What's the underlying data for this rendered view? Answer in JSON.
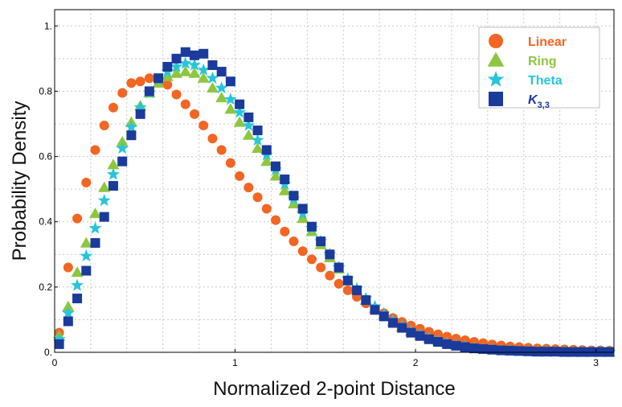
{
  "chart_data": {
    "type": "scatter",
    "xlabel": "Normalized 2-point Distance",
    "ylabel": "Probability Density",
    "xlim": [
      0,
      3.1
    ],
    "ylim": [
      0,
      1.05
    ],
    "x_ticks": [
      0,
      1,
      2,
      3
    ],
    "x_tick_labels": [
      "0",
      "1",
      "2",
      "3"
    ],
    "y_ticks": [
      0,
      0.2,
      0.4,
      0.6,
      0.8,
      1.0
    ],
    "y_tick_labels": [
      "0.",
      "0.2",
      "0.4",
      "0.6",
      "0.8",
      "1."
    ],
    "grid": true,
    "legend_position": "top-right",
    "series": [
      {
        "name": "Linear",
        "marker": "circle",
        "color": "#f26522",
        "x": [
          0.025,
          0.075,
          0.125,
          0.175,
          0.225,
          0.275,
          0.325,
          0.375,
          0.425,
          0.475,
          0.525,
          0.575,
          0.625,
          0.675,
          0.725,
          0.775,
          0.825,
          0.875,
          0.925,
          0.975,
          1.025,
          1.075,
          1.125,
          1.175,
          1.225,
          1.275,
          1.325,
          1.375,
          1.425,
          1.475,
          1.525,
          1.575,
          1.625,
          1.675,
          1.725,
          1.775,
          1.825,
          1.875,
          1.925,
          1.975,
          2.025,
          2.075,
          2.125,
          2.175,
          2.225,
          2.275,
          2.325,
          2.375,
          2.425,
          2.475,
          2.525,
          2.575,
          2.625,
          2.675,
          2.725,
          2.775,
          2.825,
          2.875,
          2.925,
          2.975,
          3.025,
          3.075
        ],
        "y": [
          0.06,
          0.26,
          0.41,
          0.52,
          0.62,
          0.695,
          0.75,
          0.795,
          0.825,
          0.83,
          0.84,
          0.83,
          0.82,
          0.79,
          0.76,
          0.73,
          0.695,
          0.655,
          0.62,
          0.58,
          0.54,
          0.505,
          0.475,
          0.44,
          0.405,
          0.37,
          0.34,
          0.31,
          0.285,
          0.26,
          0.235,
          0.21,
          0.19,
          0.17,
          0.15,
          0.135,
          0.12,
          0.105,
          0.093,
          0.082,
          0.072,
          0.063,
          0.055,
          0.048,
          0.042,
          0.037,
          0.032,
          0.028,
          0.024,
          0.021,
          0.018,
          0.016,
          0.014,
          0.012,
          0.011,
          0.01,
          0.009,
          0.008,
          0.007,
          0.006,
          0.006,
          0.005
        ]
      },
      {
        "name": "Ring",
        "marker": "triangle",
        "color": "#8dc63f",
        "x": [
          0.025,
          0.075,
          0.125,
          0.175,
          0.225,
          0.275,
          0.325,
          0.375,
          0.425,
          0.475,
          0.525,
          0.575,
          0.625,
          0.675,
          0.725,
          0.775,
          0.825,
          0.875,
          0.925,
          0.975,
          1.025,
          1.075,
          1.125,
          1.175,
          1.225,
          1.275,
          1.325,
          1.375,
          1.425,
          1.475,
          1.525,
          1.575,
          1.625,
          1.675,
          1.725,
          1.775,
          1.825,
          1.875,
          1.925,
          1.975,
          2.025,
          2.075,
          2.125,
          2.175,
          2.225,
          2.275,
          2.325,
          2.375,
          2.425,
          2.475,
          2.525,
          2.575,
          2.625,
          2.675,
          2.725,
          2.775,
          2.825,
          2.875,
          2.925,
          2.975,
          3.025,
          3.075
        ],
        "y": [
          0.05,
          0.14,
          0.245,
          0.335,
          0.425,
          0.505,
          0.575,
          0.645,
          0.705,
          0.755,
          0.795,
          0.825,
          0.845,
          0.855,
          0.86,
          0.855,
          0.84,
          0.81,
          0.78,
          0.745,
          0.705,
          0.665,
          0.625,
          0.585,
          0.54,
          0.495,
          0.455,
          0.41,
          0.37,
          0.33,
          0.29,
          0.255,
          0.22,
          0.19,
          0.16,
          0.135,
          0.115,
          0.095,
          0.078,
          0.065,
          0.053,
          0.043,
          0.035,
          0.028,
          0.022,
          0.018,
          0.014,
          0.011,
          0.009,
          0.007,
          0.006,
          0.005,
          0.004,
          0.003,
          0.003,
          0.002,
          0.002,
          0.002,
          0.001,
          0.001,
          0.001,
          0.001
        ]
      },
      {
        "name": "Theta",
        "marker": "star",
        "color": "#26c6da",
        "x": [
          0.025,
          0.075,
          0.125,
          0.175,
          0.225,
          0.275,
          0.325,
          0.375,
          0.425,
          0.475,
          0.525,
          0.575,
          0.625,
          0.675,
          0.725,
          0.775,
          0.825,
          0.875,
          0.925,
          0.975,
          1.025,
          1.075,
          1.125,
          1.175,
          1.225,
          1.275,
          1.325,
          1.375,
          1.425,
          1.475,
          1.525,
          1.575,
          1.625,
          1.675,
          1.725,
          1.775,
          1.825,
          1.875,
          1.925,
          1.975,
          2.025,
          2.075,
          2.125,
          2.175,
          2.225,
          2.275,
          2.325,
          2.375,
          2.425,
          2.475,
          2.525,
          2.575,
          2.625,
          2.675,
          2.725,
          2.775,
          2.825,
          2.875,
          2.925,
          2.975,
          3.025,
          3.075
        ],
        "y": [
          0.04,
          0.12,
          0.205,
          0.295,
          0.38,
          0.465,
          0.545,
          0.625,
          0.69,
          0.75,
          0.795,
          0.835,
          0.86,
          0.875,
          0.885,
          0.88,
          0.865,
          0.84,
          0.81,
          0.775,
          0.735,
          0.695,
          0.65,
          0.605,
          0.56,
          0.515,
          0.47,
          0.425,
          0.38,
          0.34,
          0.3,
          0.26,
          0.225,
          0.195,
          0.165,
          0.14,
          0.118,
          0.098,
          0.081,
          0.066,
          0.054,
          0.044,
          0.035,
          0.028,
          0.022,
          0.017,
          0.013,
          0.01,
          0.008,
          0.006,
          0.005,
          0.004,
          0.003,
          0.002,
          0.002,
          0.002,
          0.001,
          0.001,
          0.001,
          0.001,
          0.001,
          0.001
        ]
      },
      {
        "name": "K3,3",
        "name_main": "K",
        "name_sub": "3,3",
        "marker": "square",
        "color": "#1a3a9c",
        "x": [
          0.025,
          0.075,
          0.125,
          0.175,
          0.225,
          0.275,
          0.325,
          0.375,
          0.425,
          0.475,
          0.525,
          0.575,
          0.625,
          0.675,
          0.725,
          0.775,
          0.825,
          0.875,
          0.925,
          0.975,
          1.025,
          1.075,
          1.125,
          1.175,
          1.225,
          1.275,
          1.325,
          1.375,
          1.425,
          1.475,
          1.525,
          1.575,
          1.625,
          1.675,
          1.725,
          1.775,
          1.825,
          1.875,
          1.925,
          1.975,
          2.025,
          2.075,
          2.125,
          2.175,
          2.225,
          2.275,
          2.325,
          2.375,
          2.425,
          2.475,
          2.525,
          2.575,
          2.625,
          2.675,
          2.725,
          2.775,
          2.825,
          2.875,
          2.925,
          2.975,
          3.025,
          3.075
        ],
        "y": [
          0.025,
          0.095,
          0.165,
          0.25,
          0.335,
          0.415,
          0.51,
          0.585,
          0.665,
          0.73,
          0.8,
          0.84,
          0.875,
          0.9,
          0.92,
          0.91,
          0.915,
          0.88,
          0.86,
          0.83,
          0.76,
          0.72,
          0.68,
          0.62,
          0.57,
          0.53,
          0.48,
          0.44,
          0.385,
          0.34,
          0.3,
          0.26,
          0.22,
          0.19,
          0.16,
          0.13,
          0.11,
          0.09,
          0.075,
          0.06,
          0.05,
          0.04,
          0.032,
          0.025,
          0.02,
          0.016,
          0.012,
          0.01,
          0.008,
          0.006,
          0.005,
          0.004,
          0.003,
          0.002,
          0.002,
          0.002,
          0.001,
          0.001,
          0.001,
          0.001,
          0.001,
          0.001
        ]
      }
    ]
  }
}
